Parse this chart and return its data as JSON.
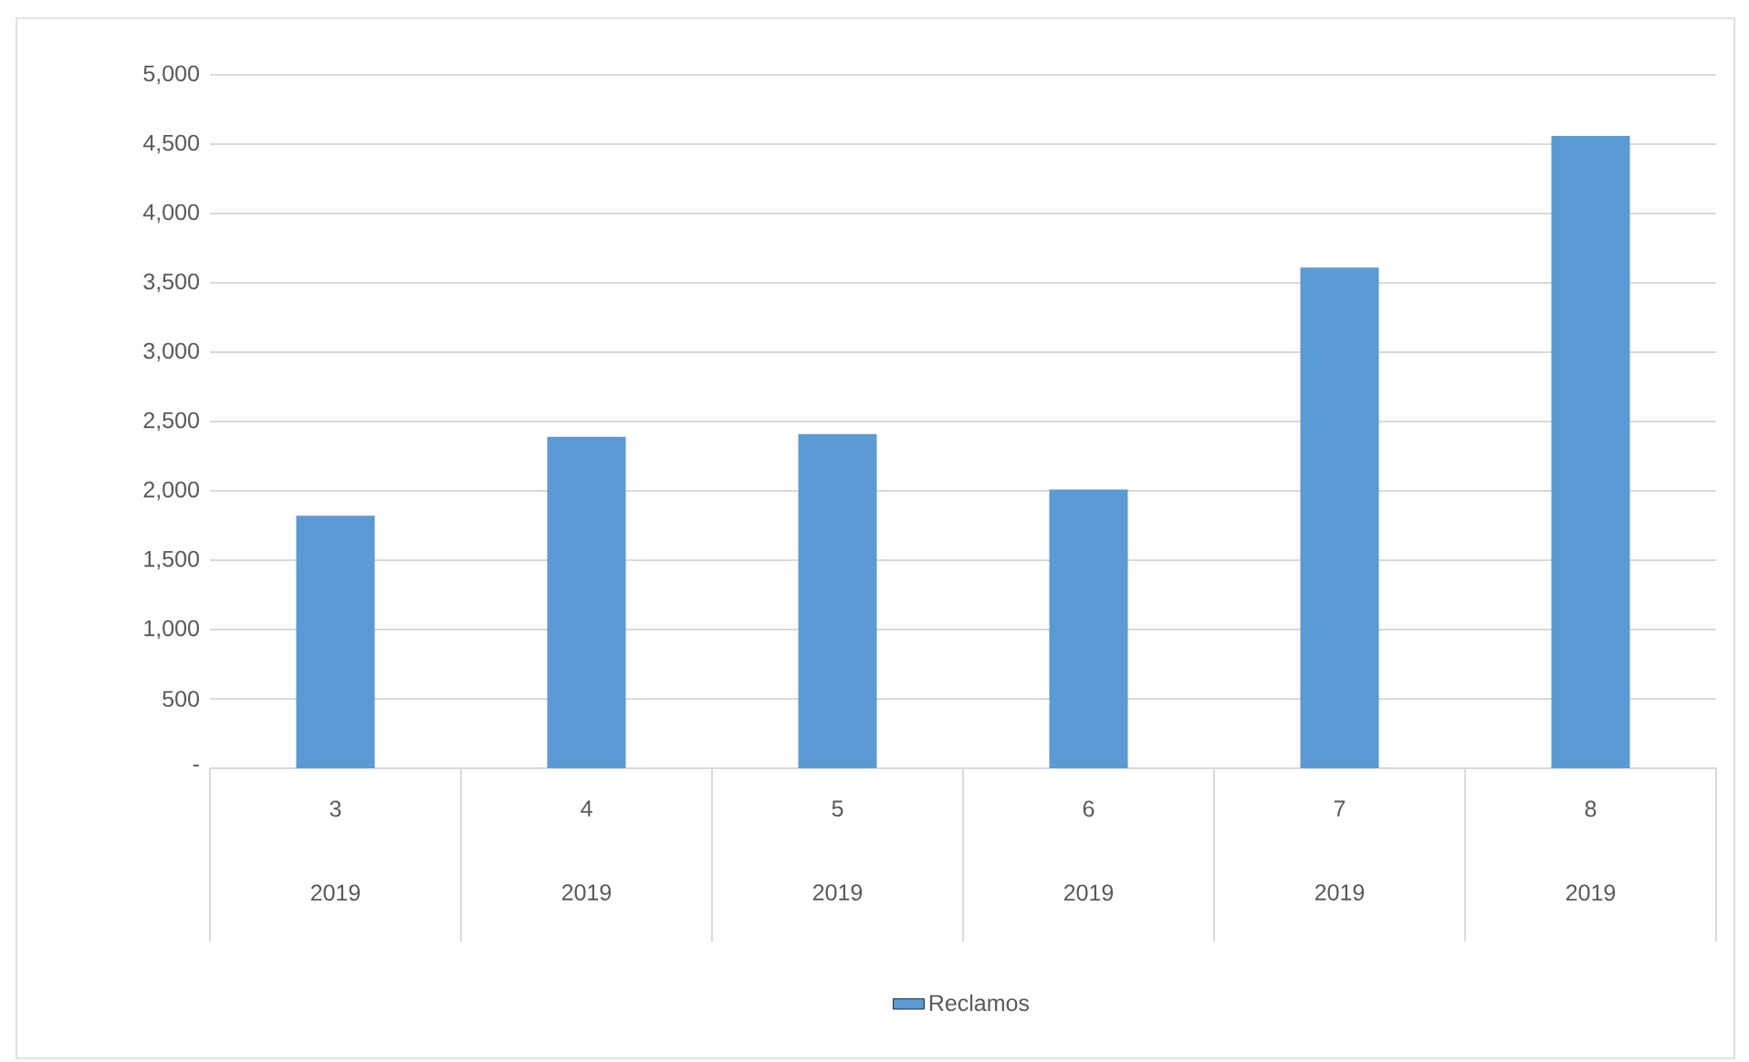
{
  "chart_data": {
    "type": "bar",
    "categories": [
      "3 2019",
      "4 2019",
      "5 2019",
      "6 2019",
      "7 2019",
      "8 2019"
    ],
    "series": [
      {
        "name": "Reclamos",
        "color": "#5b9bd5",
        "values": [
          1820,
          2390,
          2410,
          2010,
          3610,
          4560
        ]
      }
    ],
    "ylim": [
      0,
      5000
    ],
    "yticks": [
      {
        "value": 0,
        "label": "-"
      },
      {
        "value": 500,
        "label": "500"
      },
      {
        "value": 1000,
        "label": "1,000"
      },
      {
        "value": 1500,
        "label": "1,500"
      },
      {
        "value": 2000,
        "label": "2,000"
      },
      {
        "value": 2500,
        "label": "2,500"
      },
      {
        "value": 3000,
        "label": "3,000"
      },
      {
        "value": 3500,
        "label": "3,500"
      },
      {
        "value": 4000,
        "label": "4,000"
      },
      {
        "value": 4500,
        "label": "4,500"
      },
      {
        "value": 5000,
        "label": "5,000"
      }
    ],
    "grid": "y",
    "legend": "bottom"
  }
}
